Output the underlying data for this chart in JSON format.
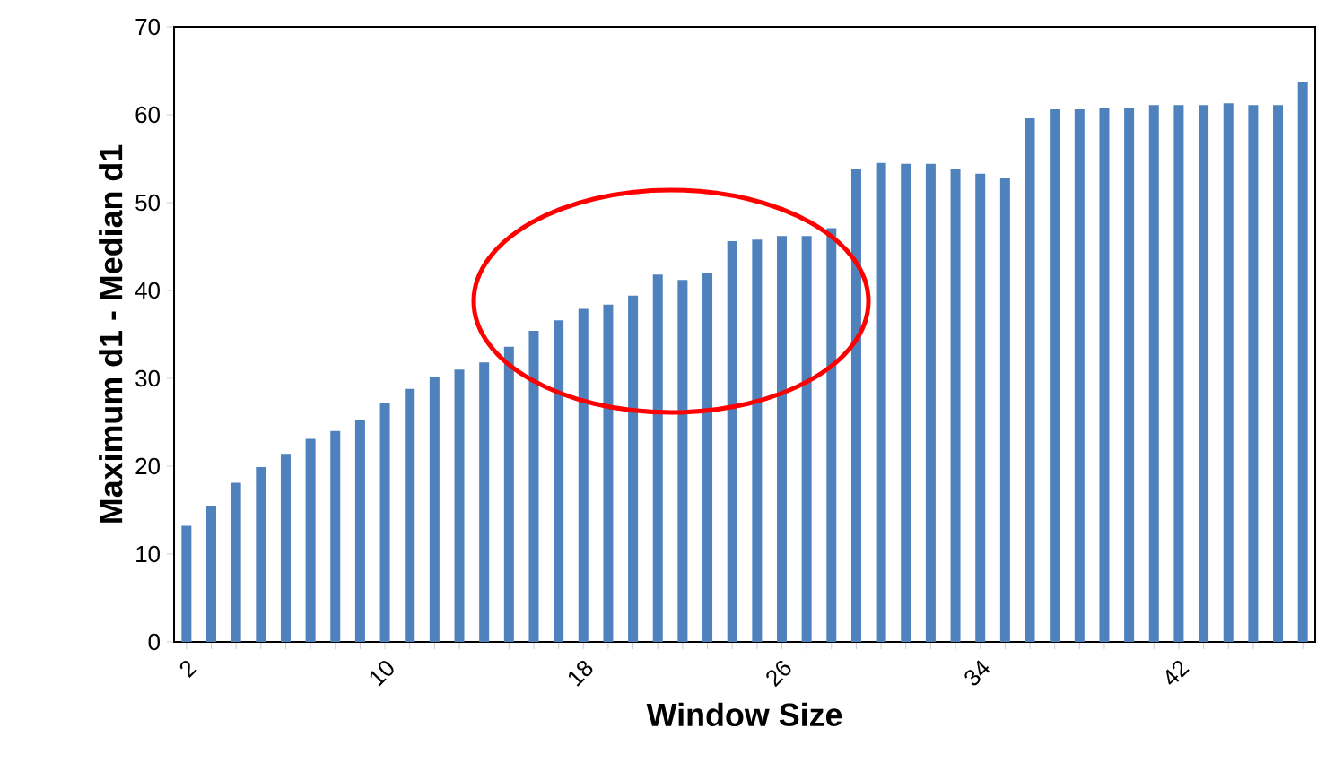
{
  "chart_data": {
    "type": "bar",
    "xlabel": "Window Size",
    "ylabel": "Maximum d1  -  Median d1",
    "categories": [
      "2",
      null,
      null,
      null,
      null,
      null,
      null,
      null,
      "10",
      null,
      null,
      null,
      null,
      null,
      null,
      null,
      "18",
      null,
      null,
      null,
      null,
      null,
      null,
      null,
      "26",
      null,
      null,
      null,
      null,
      null,
      null,
      null,
      "34",
      null,
      null,
      null,
      null,
      null,
      null,
      null,
      "42",
      null,
      null,
      null,
      null,
      null
    ],
    "values": [
      13.2,
      15.5,
      18.1,
      19.9,
      21.4,
      23.1,
      24.0,
      25.3,
      27.2,
      28.8,
      30.2,
      31.0,
      31.8,
      33.6,
      35.4,
      36.6,
      37.9,
      38.4,
      39.4,
      41.8,
      41.2,
      42.0,
      45.6,
      45.8,
      46.2,
      46.2,
      47.1,
      53.8,
      54.5,
      54.4,
      54.4,
      53.8,
      53.3,
      52.8,
      59.6,
      60.6,
      60.6,
      60.8,
      60.8,
      61.1,
      61.1,
      61.1,
      61.3,
      61.1,
      61.1,
      63.7
    ],
    "color": "#4f81bd",
    "ylim": [
      0,
      70
    ],
    "yticks": [
      0,
      10,
      20,
      30,
      40,
      50,
      60,
      70
    ],
    "grid": false
  }
}
